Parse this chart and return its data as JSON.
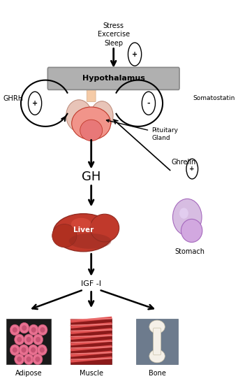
{
  "bg_color": "#ffffff",
  "colors": {
    "background_color": "#ffffff",
    "hypothalamus_fill": "#b0b0b0",
    "hypothalamus_edge": "#888888",
    "arrow": "#000000",
    "liver_main": "#c0392b",
    "liver_dark": "#922b21",
    "stomach_main": "#d7bde2",
    "stomach_dark": "#a569bd",
    "pituitary_main": "#f1948a",
    "pituitary_dark": "#e74c3c",
    "adipose_bg": "#1a1a1a",
    "adipose_cell": "#e8a0b0",
    "muscle_red": "#c0392b",
    "muscle_light": "#f1948a",
    "bone_bg": "#6d7b8d",
    "bone_color": "#f5f0e8"
  },
  "texts": {
    "stress": "Stress\nExcercise\nSleep",
    "hypothalamus": "Hypothalamus",
    "ghrh": "GHRH",
    "somatostatin": "Somatostatin",
    "pituitary": "Pituitary\nGland",
    "ghrelin": "Ghrelin",
    "gh": "GH",
    "liver": "Liver",
    "igf": "IGF -I",
    "stomach": "Stomach",
    "adipose": "Adipose",
    "muscle": "Muscle",
    "bone": "Bone"
  }
}
